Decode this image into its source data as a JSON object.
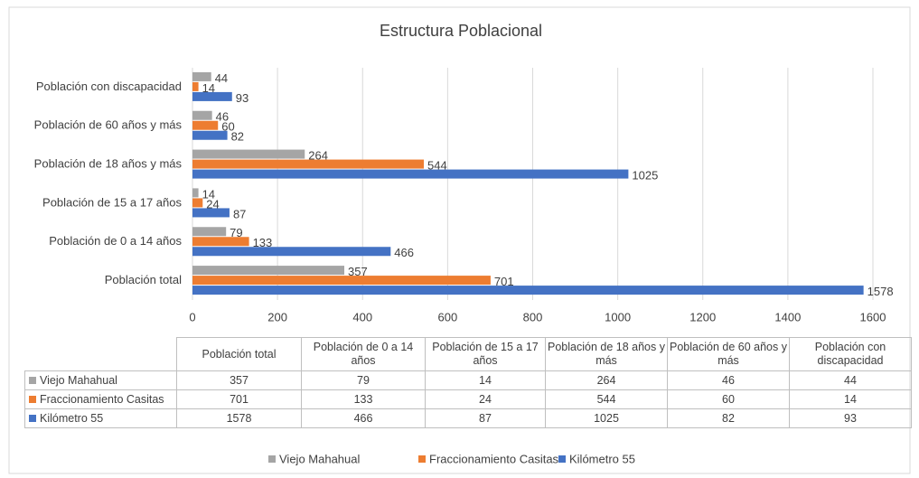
{
  "chart_data": {
    "type": "bar",
    "orientation": "horizontal",
    "title": "Estructura Poblacional",
    "categories": [
      "Población total",
      "Población de 0 a 14 años",
      "Población de 15 a 17 años",
      "Población de 18 años y más",
      "Población de 60 años y más",
      "Población con discapacidad"
    ],
    "series": [
      {
        "name": "Viejo Mahahual",
        "color": "#a5a5a5",
        "values": [
          357,
          79,
          14,
          264,
          46,
          44
        ]
      },
      {
        "name": "Fraccionamiento Casitas",
        "color": "#ed7d31",
        "values": [
          701,
          133,
          24,
          544,
          60,
          14
        ]
      },
      {
        "name": "Kilómetro 55",
        "color": "#4472c4",
        "values": [
          1578,
          466,
          87,
          1025,
          82,
          93
        ]
      }
    ],
    "xlim": [
      0,
      1600
    ],
    "xticks": [
      0,
      200,
      400,
      600,
      800,
      1000,
      1200,
      1400,
      1600
    ],
    "grid": true,
    "legend": "bottom"
  }
}
